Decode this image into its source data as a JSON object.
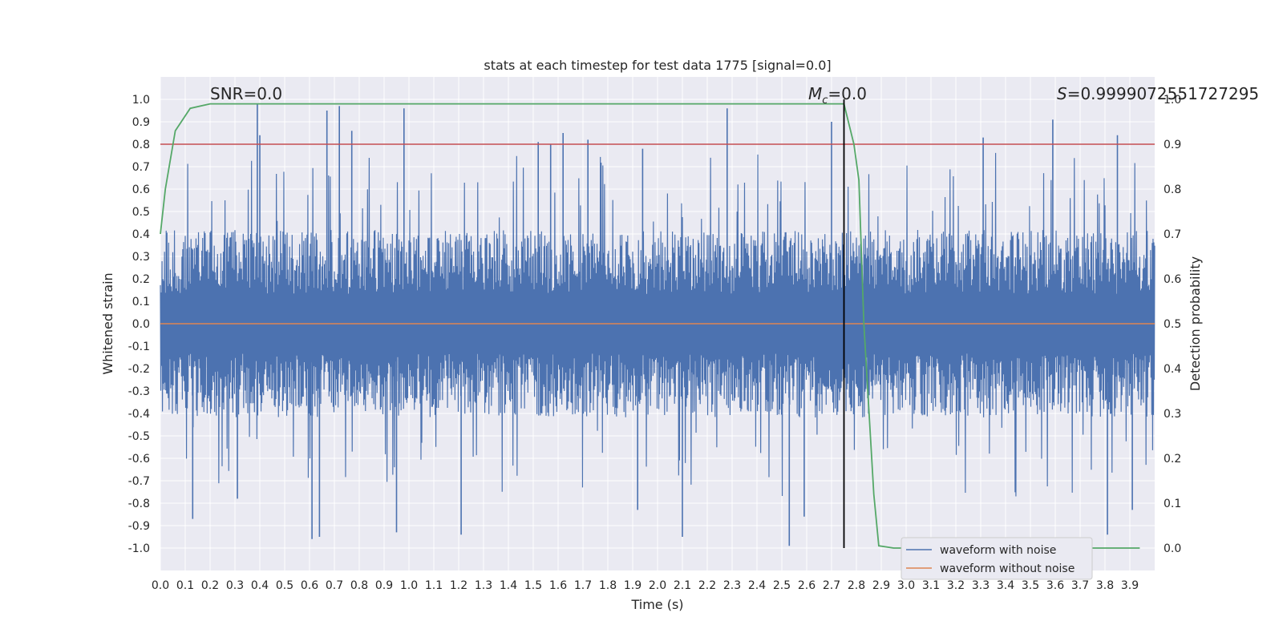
{
  "chart_data": {
    "type": "line",
    "title": "stats at each timestep for test data 1775 [signal=0.0]",
    "xlabel": "Time (s)",
    "ylabel": "Whitened strain",
    "y2label": "Detection probability",
    "xlim": [
      0.0,
      4.0
    ],
    "ylim": [
      -1.1,
      1.1
    ],
    "y2lim": [
      -0.05,
      1.05
    ],
    "x_ticks": [
      "0.0",
      "0.1",
      "0.2",
      "0.3",
      "0.4",
      "0.5",
      "0.6",
      "0.7",
      "0.8",
      "0.9",
      "1.0",
      "1.1",
      "1.2",
      "1.3",
      "1.4",
      "1.5",
      "1.6",
      "1.7",
      "1.8",
      "1.9",
      "2.0",
      "2.1",
      "2.2",
      "2.3",
      "2.4",
      "2.5",
      "2.6",
      "2.7",
      "2.8",
      "2.9",
      "3.0",
      "3.1",
      "3.2",
      "3.3",
      "3.4",
      "3.5",
      "3.6",
      "3.7",
      "3.8",
      "3.9"
    ],
    "y_ticks": [
      "1.0",
      "0.9",
      "0.8",
      "0.7",
      "0.6",
      "0.5",
      "0.4",
      "0.3",
      "0.2",
      "0.1",
      "0.0",
      "-0.1",
      "-0.2",
      "-0.3",
      "-0.4",
      "-0.5",
      "-0.6",
      "-0.7",
      "-0.8",
      "-0.9",
      "-1.0"
    ],
    "y2_ticks": [
      "1.0",
      "0.9",
      "0.8",
      "0.7",
      "0.6",
      "0.5",
      "0.4",
      "0.3",
      "0.2",
      "0.1",
      "0.0"
    ],
    "annotations": {
      "snr": "SNR=0.0",
      "mc_symbol": "M",
      "mc_sub": "c",
      "mc_value": "=0.0",
      "s_symbol": "S",
      "s_value": "=0.9999072551727295"
    },
    "noise_series": {
      "name": "waveform with noise",
      "color": "#4c72b0",
      "dense_envelope": 0.38,
      "spikes": [
        {
          "t": 0.39,
          "v": 0.98
        },
        {
          "t": 0.4,
          "v": 0.84
        },
        {
          "t": 0.67,
          "v": 0.95
        },
        {
          "t": 0.72,
          "v": 0.97
        },
        {
          "t": 0.77,
          "v": 0.86
        },
        {
          "t": 0.98,
          "v": 0.96
        },
        {
          "t": 1.52,
          "v": 0.81
        },
        {
          "t": 1.57,
          "v": 0.8
        },
        {
          "t": 1.62,
          "v": 0.85
        },
        {
          "t": 1.72,
          "v": 0.82
        },
        {
          "t": 1.94,
          "v": 0.78
        },
        {
          "t": 2.28,
          "v": 0.96
        },
        {
          "t": 2.7,
          "v": 0.9
        },
        {
          "t": 3.31,
          "v": 0.83
        },
        {
          "t": 3.59,
          "v": 0.91
        },
        {
          "t": 3.85,
          "v": 0.84
        },
        {
          "t": 0.13,
          "v": -0.87
        },
        {
          "t": 0.31,
          "v": -0.78
        },
        {
          "t": 0.61,
          "v": -0.96
        },
        {
          "t": 0.64,
          "v": -0.95
        },
        {
          "t": 0.95,
          "v": -0.93
        },
        {
          "t": 1.21,
          "v": -0.94
        },
        {
          "t": 2.1,
          "v": -0.95
        },
        {
          "t": 2.53,
          "v": -0.99
        },
        {
          "t": 2.59,
          "v": -0.86
        },
        {
          "t": 3.81,
          "v": -0.94
        },
        {
          "t": 3.91,
          "v": -0.83
        },
        {
          "t": 1.92,
          "v": -0.83
        }
      ]
    },
    "clean_series": {
      "name": "waveform without noise",
      "color": "#dd8452",
      "value": 0.0
    },
    "probability_series": {
      "color": "#55a868",
      "x": [
        0.0,
        0.02,
        0.06,
        0.12,
        0.2,
        0.3,
        0.5,
        1.0,
        1.5,
        2.0,
        2.5,
        2.6,
        2.7,
        2.75,
        2.79,
        2.81,
        2.83,
        2.87,
        2.89,
        2.95,
        3.0,
        3.5,
        3.94
      ],
      "y": [
        0.7,
        0.8,
        0.93,
        0.98,
        0.99,
        0.99,
        0.99,
        0.99,
        0.99,
        0.99,
        0.99,
        0.99,
        0.99,
        0.99,
        0.9,
        0.82,
        0.5,
        0.12,
        0.005,
        0.0,
        0.0,
        0.0,
        0.0
      ]
    },
    "threshold": {
      "value": 0.9,
      "color": "#c44e52"
    },
    "marker_line": {
      "t": 2.75,
      "color": "#000000"
    },
    "legend": {
      "position": "lower-right",
      "entries": [
        "waveform with noise",
        "waveform without noise"
      ]
    }
  }
}
